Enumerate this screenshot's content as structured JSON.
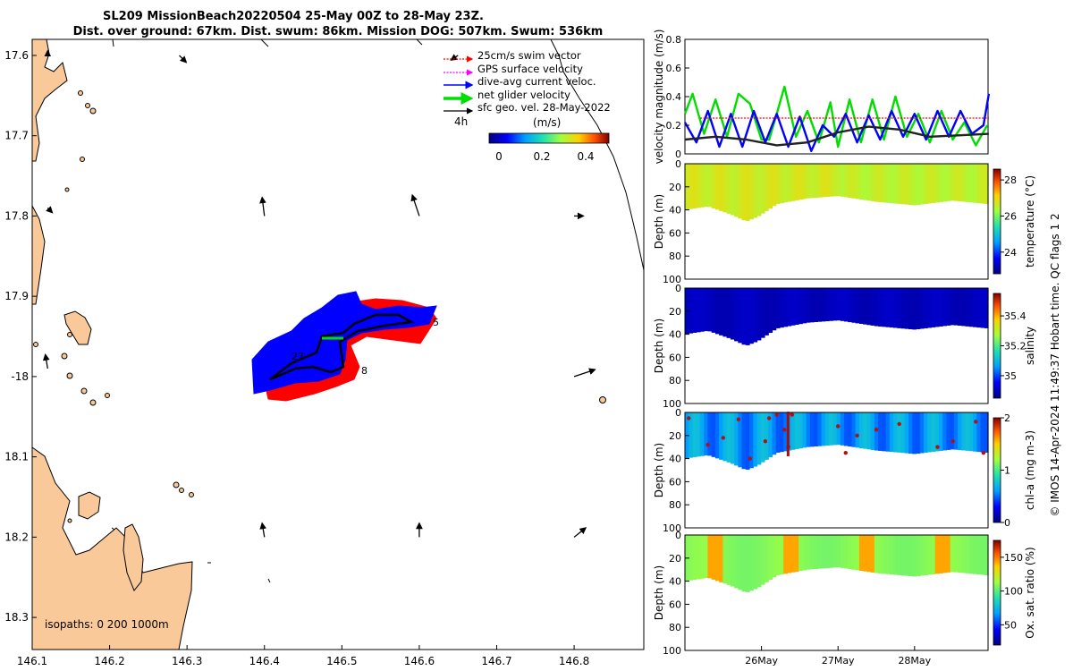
{
  "title": {
    "line1": "SL209 MissionBeach20220504 25-May 00Z to 28-May 23Z.",
    "line2": "Dist. over ground: 67km. Dist. swum: 86km. Mission DOG: 507km. Swum: 536km"
  },
  "map": {
    "lon_ticks": [
      "146.1",
      "146.2",
      "146.3",
      "146.4",
      "146.5",
      "146.6",
      "146.7",
      "146.8"
    ],
    "lat_ticks": [
      "17.6",
      "17.7",
      "17.8",
      "17.9",
      "-18",
      "18.1",
      "18.2",
      "18.3"
    ],
    "lon_range": [
      146.1,
      146.89
    ],
    "lat_range": [
      -17.58,
      -18.34
    ],
    "isopaths_label": "isopaths: 0   200  1000m",
    "time_label": "4h",
    "track_labels": [
      "27",
      "8",
      "5"
    ],
    "legend": [
      {
        "label": "25cm/s swim vector",
        "color": "#ff0000",
        "style": "dotted-arrow"
      },
      {
        "label": "GPS surface velocity",
        "color": "#ff00ff",
        "style": "dotted-arrow"
      },
      {
        "label": "dive-avg current veloc.",
        "color": "#0000ff",
        "style": "arrow"
      },
      {
        "label": "net glider velocity",
        "color": "#00dd00",
        "style": "thick-arrow"
      },
      {
        "label": "sfc geo. vel. 28-May-2022",
        "color": "#000000",
        "style": "arrow"
      }
    ],
    "colorbar": {
      "label": "(m/s)",
      "ticks": [
        "0",
        "0.2",
        "0.4"
      ],
      "range": [
        0,
        0.5
      ]
    },
    "land_color": "#f9c99a",
    "geo_vectors": [
      {
        "lon": 146.12,
        "lat": -17.6,
        "u": 0.0,
        "v": 0.02
      },
      {
        "lon": 146.29,
        "lat": -17.6,
        "u": 0.03,
        "v": -0.03
      },
      {
        "lon": 146.47,
        "lat": -17.6,
        "u": 0.0,
        "v": 0.0
      },
      {
        "lon": 146.65,
        "lat": -17.6,
        "u": -0.03,
        "v": -0.02
      },
      {
        "lon": 146.12,
        "lat": -17.79,
        "u": 0.02,
        "v": -0.02
      },
      {
        "lon": 146.4,
        "lat": -17.8,
        "u": -0.01,
        "v": 0.08
      },
      {
        "lon": 146.6,
        "lat": -17.8,
        "u": -0.03,
        "v": 0.09
      },
      {
        "lon": 146.8,
        "lat": -17.8,
        "u": 0.04,
        "v": 0.0
      },
      {
        "lon": 146.12,
        "lat": -17.99,
        "u": -0.01,
        "v": 0.06
      },
      {
        "lon": 146.8,
        "lat": -18.0,
        "u": 0.09,
        "v": 0.03
      },
      {
        "lon": 146.4,
        "lat": -18.2,
        "u": -0.01,
        "v": 0.06
      },
      {
        "lon": 146.6,
        "lat": -18.2,
        "u": 0.0,
        "v": 0.06
      },
      {
        "lon": 146.8,
        "lat": -18.2,
        "u": 0.05,
        "v": 0.04
      }
    ]
  },
  "chart_data": [
    {
      "type": "line",
      "ylabel": "velocity magnitude (m/s)",
      "ylim": [
        0,
        0.8
      ],
      "yticks": [
        "0",
        "0.2",
        "0.4",
        "0.6",
        "0.8"
      ],
      "x_range_days": [
        "25-May 00Z",
        "28-May 23Z"
      ],
      "xtick_labels": [
        "26May",
        "27May",
        "28May"
      ],
      "series": [
        {
          "color": "#00dd00",
          "x": [
            0,
            0.1,
            0.25,
            0.4,
            0.55,
            0.7,
            0.85,
            1.0,
            1.1,
            1.2,
            1.3,
            1.45,
            1.6,
            1.75,
            1.9,
            2.0,
            2.15,
            2.3,
            2.45,
            2.6,
            2.75,
            2.9,
            3.05,
            3.2,
            3.35,
            3.5,
            3.65,
            3.8,
            3.95
          ],
          "values": [
            0.28,
            0.42,
            0.14,
            0.38,
            0.12,
            0.42,
            0.35,
            0.1,
            0.1,
            0.28,
            0.47,
            0.12,
            0.3,
            0.08,
            0.36,
            0.05,
            0.38,
            0.08,
            0.38,
            0.1,
            0.4,
            0.12,
            0.28,
            0.08,
            0.3,
            0.1,
            0.22,
            0.06,
            0.2
          ]
        },
        {
          "color": "#0000ff",
          "x": [
            0,
            0.15,
            0.3,
            0.45,
            0.6,
            0.75,
            0.9,
            1.05,
            1.2,
            1.35,
            1.5,
            1.65,
            1.8,
            1.95,
            2.1,
            2.25,
            2.4,
            2.55,
            2.7,
            2.85,
            3.0,
            3.15,
            3.3,
            3.45,
            3.6,
            3.75,
            3.9,
            3.97
          ],
          "values": [
            0.22,
            0.08,
            0.3,
            0.05,
            0.28,
            0.05,
            0.3,
            0.08,
            0.28,
            0.05,
            0.26,
            0.02,
            0.2,
            0.12,
            0.28,
            0.08,
            0.27,
            0.1,
            0.3,
            0.12,
            0.28,
            0.1,
            0.3,
            0.12,
            0.3,
            0.14,
            0.2,
            0.42
          ]
        },
        {
          "color": "#222222",
          "x": [
            0,
            0.4,
            0.8,
            1.2,
            1.6,
            2.0,
            2.4,
            2.8,
            3.2,
            3.6,
            3.97
          ],
          "values": [
            0.1,
            0.12,
            0.1,
            0.06,
            0.08,
            0.15,
            0.19,
            0.17,
            0.12,
            0.13,
            0.14
          ]
        },
        {
          "color": "#ff0000",
          "x": [
            0.2,
            3.97
          ],
          "values": [
            0.25,
            0.25
          ]
        }
      ]
    },
    {
      "type": "heatmap",
      "variable": "temperature",
      "colorbar_label": "temperature (°C)",
      "colorbar_ticks": [
        "28",
        "26",
        "24"
      ],
      "clim": [
        22.8,
        28.6
      ],
      "ylabel": "Depth (m)",
      "yticks": [
        "0",
        "20",
        "40",
        "60",
        "80",
        "100"
      ],
      "typical_value": 26.5
    },
    {
      "type": "heatmap",
      "variable": "salinity",
      "colorbar_label": "salinity",
      "colorbar_ticks": [
        "35.4",
        "35.2",
        "35"
      ],
      "clim": [
        34.85,
        35.55
      ],
      "ylabel": "Depth (m)",
      "yticks": [
        "0",
        "20",
        "40",
        "60",
        "80",
        "100"
      ],
      "typical_value": 34.9
    },
    {
      "type": "heatmap",
      "variable": "chl-a",
      "colorbar_label": "chl-a (mg m-3)",
      "colorbar_ticks": [
        "2",
        "1",
        "0"
      ],
      "clim": [
        0,
        2
      ],
      "ylabel": "Depth (m)",
      "yticks": [
        "0",
        "20",
        "40",
        "60",
        "80",
        "100"
      ],
      "typical_value": 0.6
    },
    {
      "type": "heatmap",
      "variable": "oxygen saturation",
      "colorbar_label": "Ox. sat. ratio (%)",
      "colorbar_ticks": [
        "150",
        "100",
        "50"
      ],
      "clim": [
        20,
        175
      ],
      "ylabel": "Depth (m)",
      "yticks": [
        "0",
        "20",
        "40",
        "60",
        "80",
        "100"
      ],
      "typical_value": 108
    }
  ],
  "credit": "© IMOS 14-Apr-2024 11:49:37 Hobart time. QC flags 1  2"
}
